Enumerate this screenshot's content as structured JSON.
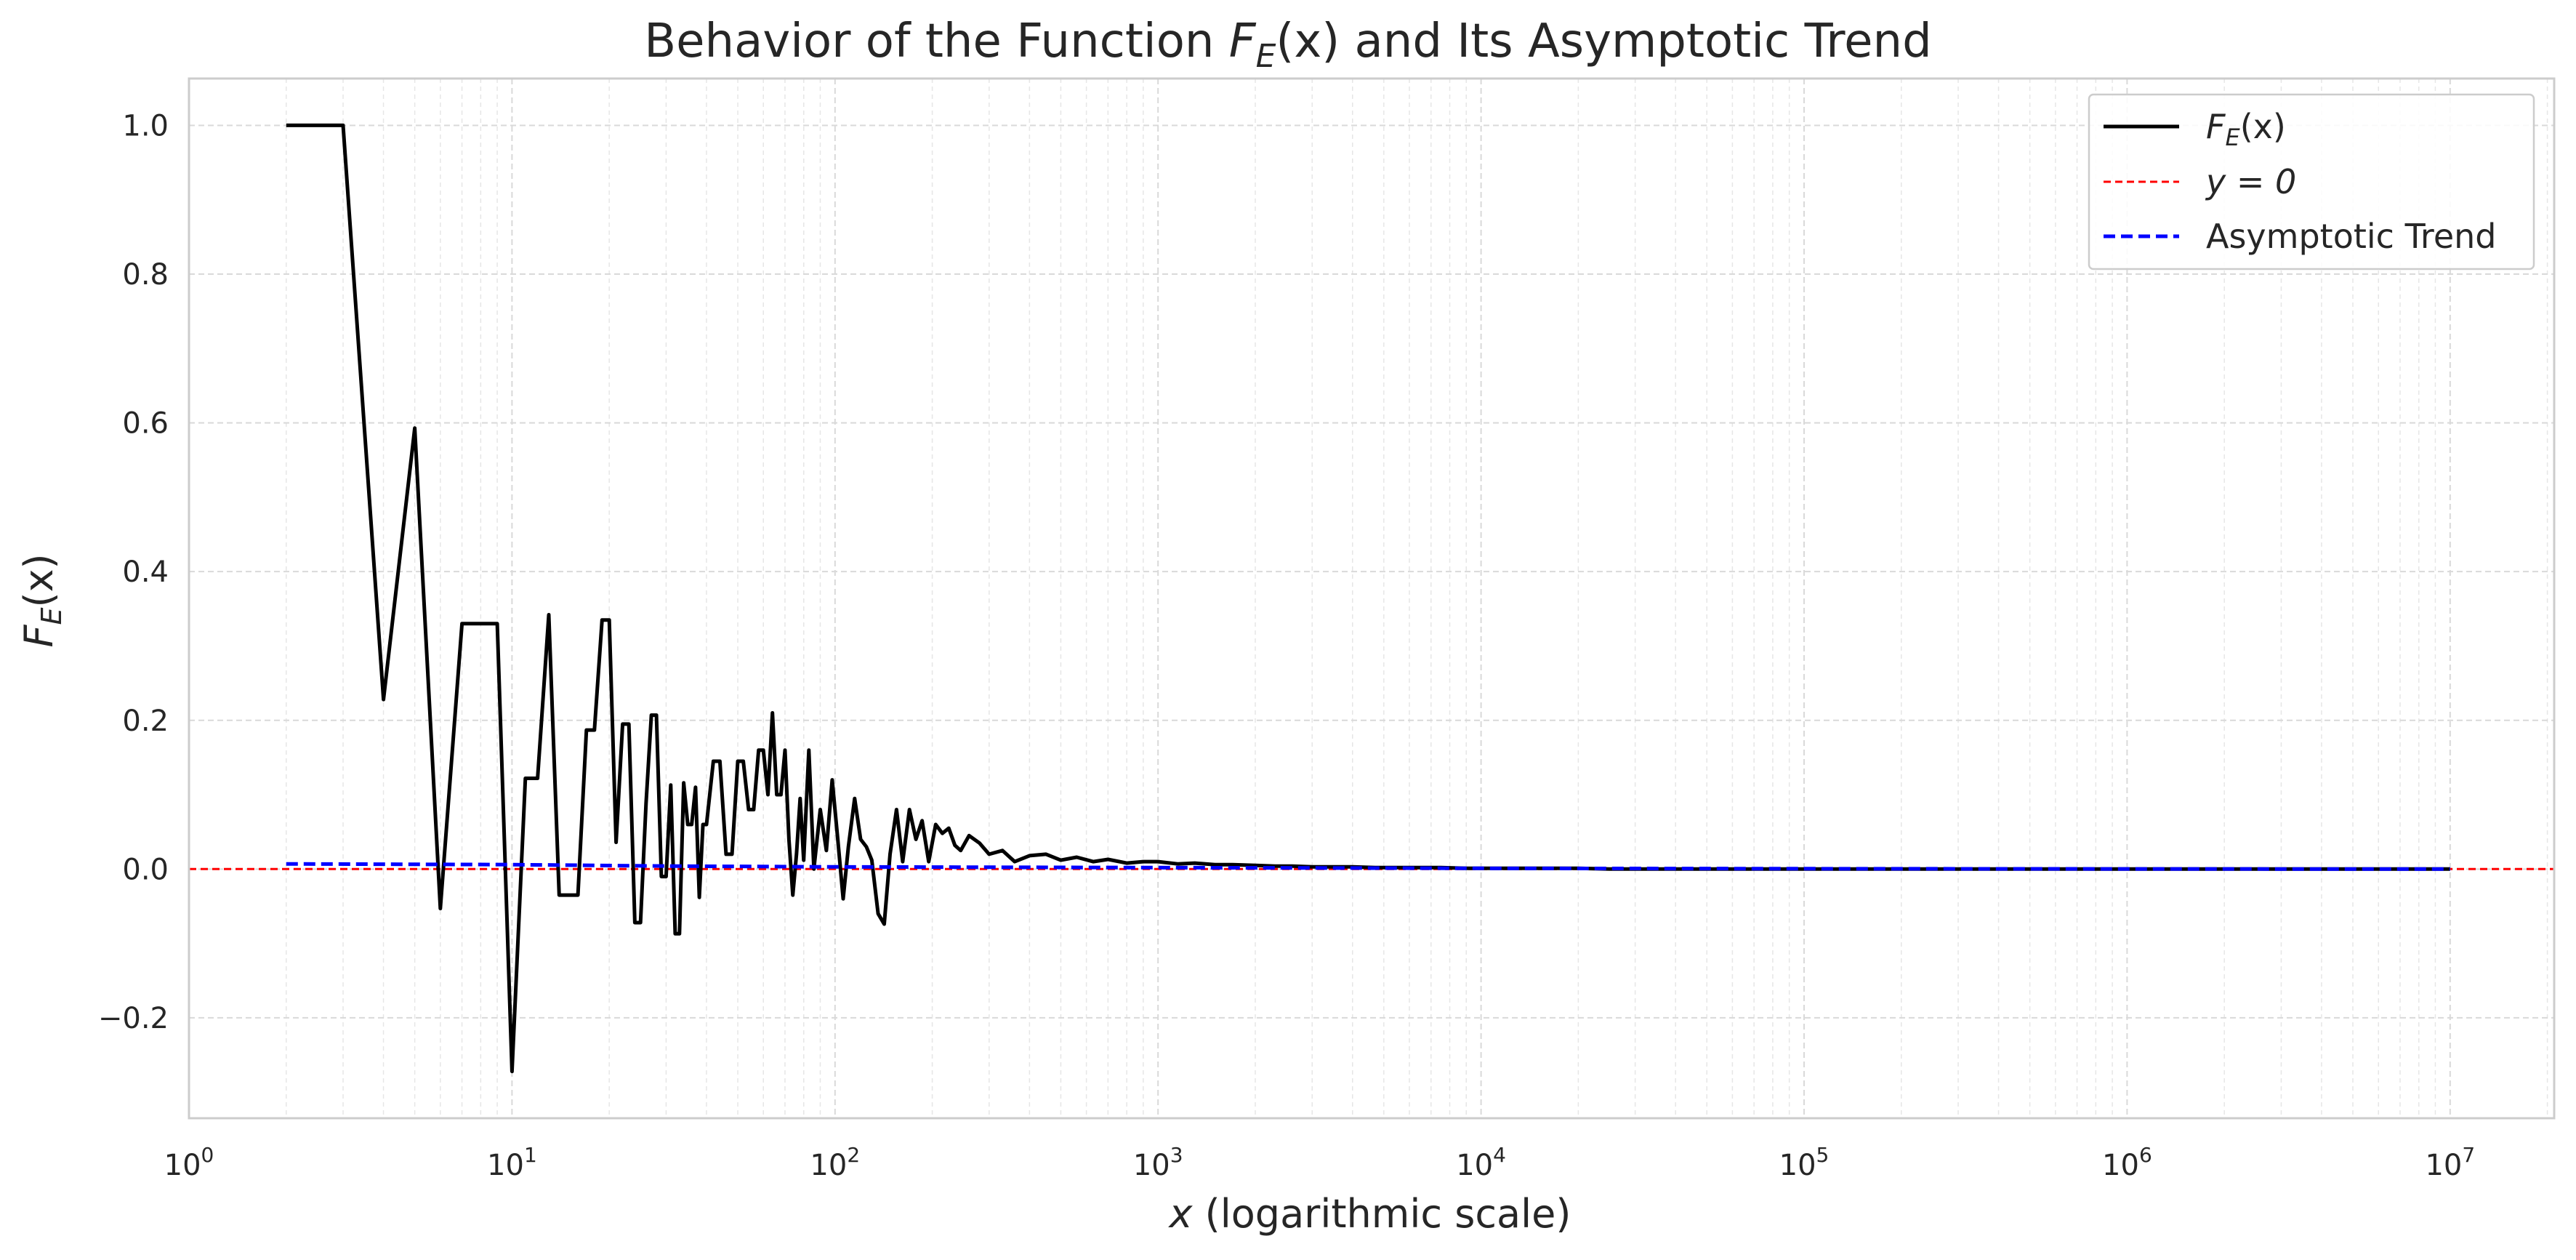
{
  "chart_data": {
    "type": "line",
    "title_parts": {
      "prefix": "Behavior of the Function ",
      "func": "F",
      "sub": "E",
      "arg": "(x)",
      "suffix": " and Its Asymptotic Trend"
    },
    "xlabel_parts": {
      "var": "x",
      "rest": " (logarithmic scale)"
    },
    "ylabel_parts": {
      "func": "F",
      "sub": "E",
      "arg": "(x)"
    },
    "x_scale": "log",
    "xlim": [
      1,
      21000000
    ],
    "ylim": [
      -0.335,
      1.063
    ],
    "x_ticks": [
      {
        "base": "10",
        "exp": "0"
      },
      {
        "base": "10",
        "exp": "1"
      },
      {
        "base": "10",
        "exp": "2"
      },
      {
        "base": "10",
        "exp": "3"
      },
      {
        "base": "10",
        "exp": "4"
      },
      {
        "base": "10",
        "exp": "5"
      },
      {
        "base": "10",
        "exp": "6"
      },
      {
        "base": "10",
        "exp": "7"
      }
    ],
    "y_ticks": [
      "−0.2",
      "0.0",
      "0.2",
      "0.4",
      "0.6",
      "0.8",
      "1.0"
    ],
    "y_tick_values": [
      -0.2,
      0.0,
      0.2,
      0.4,
      0.6,
      0.8,
      1.0
    ],
    "grid": true,
    "legend_position": "top-right",
    "legend": [
      {
        "func": "F",
        "sub": "E",
        "arg": "(x)",
        "style": "solid",
        "color": "#000000"
      },
      {
        "math": "y = 0",
        "style": "dashed",
        "color": "#ff0000"
      },
      {
        "text": "Asymptotic Trend",
        "style": "dashed",
        "color": "#0000ff"
      }
    ],
    "series": [
      {
        "key": "fe",
        "color": "#000000",
        "style": "solid",
        "x": [
          2,
          3,
          4,
          5,
          6,
          7,
          8,
          9,
          10,
          11,
          12,
          13,
          14,
          15,
          16,
          17,
          18,
          19,
          20,
          21,
          22,
          23,
          24,
          25,
          26,
          27,
          28,
          29,
          30,
          31,
          32,
          33,
          34,
          35,
          36,
          37,
          38,
          39,
          40,
          42,
          44,
          46,
          48,
          50,
          52,
          54,
          56,
          58,
          60,
          62,
          64,
          66,
          68,
          70,
          72,
          74,
          76,
          78,
          80,
          83,
          86,
          90,
          94,
          98,
          102,
          106,
          110,
          115,
          120,
          125,
          130,
          136,
          142,
          148,
          155,
          162,
          170,
          178,
          186,
          195,
          205,
          215,
          225,
          235,
          245,
          260,
          280,
          300,
          330,
          360,
          400,
          450,
          500,
          560,
          630,
          700,
          800,
          900,
          1000,
          1150,
          1300,
          1500,
          1700,
          2000,
          2300,
          2600,
          3000,
          3500,
          4000,
          4700,
          5500,
          6500,
          7500,
          9000,
          11000,
          13000,
          16000,
          20000,
          25000,
          32000,
          40000,
          50000,
          65000,
          85000,
          110000,
          150000,
          200000,
          300000,
          450000,
          700000,
          1000000,
          1600000,
          2500000,
          4000000,
          6500000,
          10000000
        ],
        "y": [
          1.0,
          1.0,
          0.228,
          0.593,
          -0.053,
          0.33,
          0.33,
          0.33,
          -0.272,
          0.122,
          0.122,
          0.342,
          -0.035,
          -0.035,
          -0.035,
          0.187,
          0.187,
          0.335,
          0.335,
          0.036,
          0.195,
          0.195,
          -0.072,
          -0.072,
          0.088,
          0.207,
          0.207,
          -0.01,
          -0.01,
          0.113,
          -0.087,
          -0.087,
          0.116,
          0.06,
          0.06,
          0.11,
          -0.038,
          0.06,
          0.06,
          0.145,
          0.145,
          0.02,
          0.02,
          0.145,
          0.145,
          0.08,
          0.08,
          0.16,
          0.16,
          0.1,
          0.21,
          0.1,
          0.1,
          0.16,
          0.04,
          -0.035,
          0.02,
          0.095,
          0.012,
          0.16,
          0.0,
          0.08,
          0.025,
          0.12,
          0.04,
          -0.04,
          0.03,
          0.095,
          0.04,
          0.03,
          0.012,
          -0.06,
          -0.074,
          0.02,
          0.08,
          0.01,
          0.08,
          0.04,
          0.065,
          0.01,
          0.06,
          0.048,
          0.055,
          0.032,
          0.025,
          0.045,
          0.035,
          0.02,
          0.025,
          0.01,
          0.018,
          0.02,
          0.012,
          0.016,
          0.01,
          0.013,
          0.008,
          0.01,
          0.01,
          0.007,
          0.008,
          0.006,
          0.006,
          0.005,
          0.004,
          0.004,
          0.003,
          0.003,
          0.003,
          0.002,
          0.002,
          0.002,
          0.002,
          0.001,
          0.001,
          0.001,
          0.001,
          0.001,
          0.0,
          0.0,
          0.0,
          0.0,
          0.0,
          0.0,
          0.0,
          0.0,
          0.0,
          0.0,
          0.0,
          0.0,
          0.0,
          0.0,
          0.0,
          0.0,
          0.0,
          0.0
        ]
      },
      {
        "key": "y0",
        "color": "#ff0000",
        "style": "dashed",
        "x": [
          1,
          21000000
        ],
        "y": [
          0.0,
          0.0
        ]
      },
      {
        "key": "trend",
        "color": "#0000ff",
        "style": "dashed",
        "x": [
          2,
          10,
          30,
          100,
          1000,
          10000,
          100000,
          1000000,
          10000000
        ],
        "y": [
          0.007,
          0.006,
          0.004,
          0.003,
          0.002,
          0.001,
          0.0005,
          0.0002,
          0.0
        ]
      }
    ]
  }
}
